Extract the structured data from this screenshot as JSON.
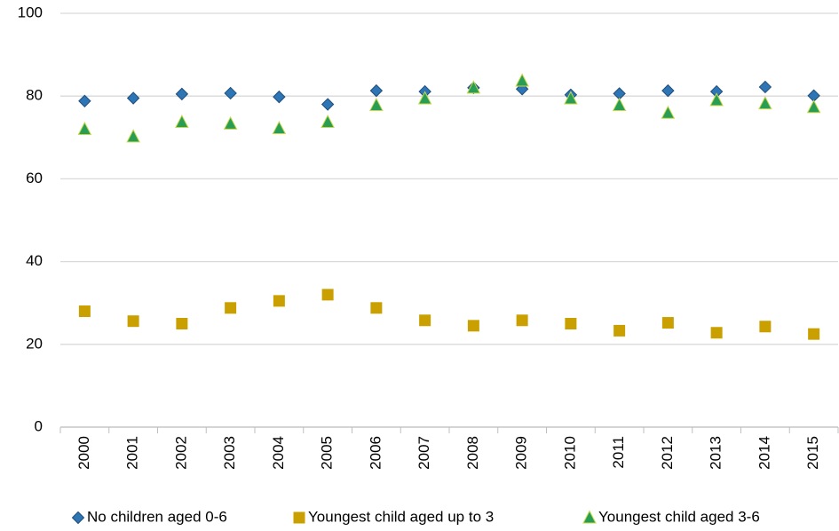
{
  "chart_data": {
    "type": "scatter",
    "categories": [
      "2000",
      "2001",
      "2002",
      "2003",
      "2004",
      "2005",
      "2006",
      "2007",
      "2008",
      "2009",
      "2010",
      "2011",
      "2012",
      "2013",
      "2014",
      "2015"
    ],
    "series": [
      {
        "name": "No children aged 0-6",
        "color": "#2e75b6",
        "marker": "diamond",
        "values": [
          78.8,
          79.5,
          80.5,
          80.7,
          79.8,
          78,
          81.3,
          81.1,
          82,
          81.7,
          80.3,
          80.6,
          81.3,
          81.1,
          82.2,
          80.1
        ]
      },
      {
        "name": "Youngest child aged up to 3",
        "color": "#c9a000",
        "marker": "square",
        "values": [
          28,
          25.6,
          25,
          28.8,
          30.5,
          32,
          28.8,
          25.8,
          24.5,
          25.8,
          25,
          23.3,
          25.2,
          22.8,
          24.3,
          22.5
        ]
      },
      {
        "name": "Youngest child aged 3-6",
        "color": "#2a9d55",
        "marker": "triangle",
        "values": [
          72,
          70.2,
          73.7,
          73.3,
          72.2,
          73.7,
          77.8,
          79.4,
          82,
          83.7,
          79.4,
          77.8,
          75.9,
          79,
          78.2,
          77.3
        ]
      }
    ],
    "ylim": [
      0,
      100
    ],
    "yticks": [
      0,
      20,
      40,
      60,
      80,
      100
    ],
    "grid": true,
    "legend": "bottom"
  }
}
